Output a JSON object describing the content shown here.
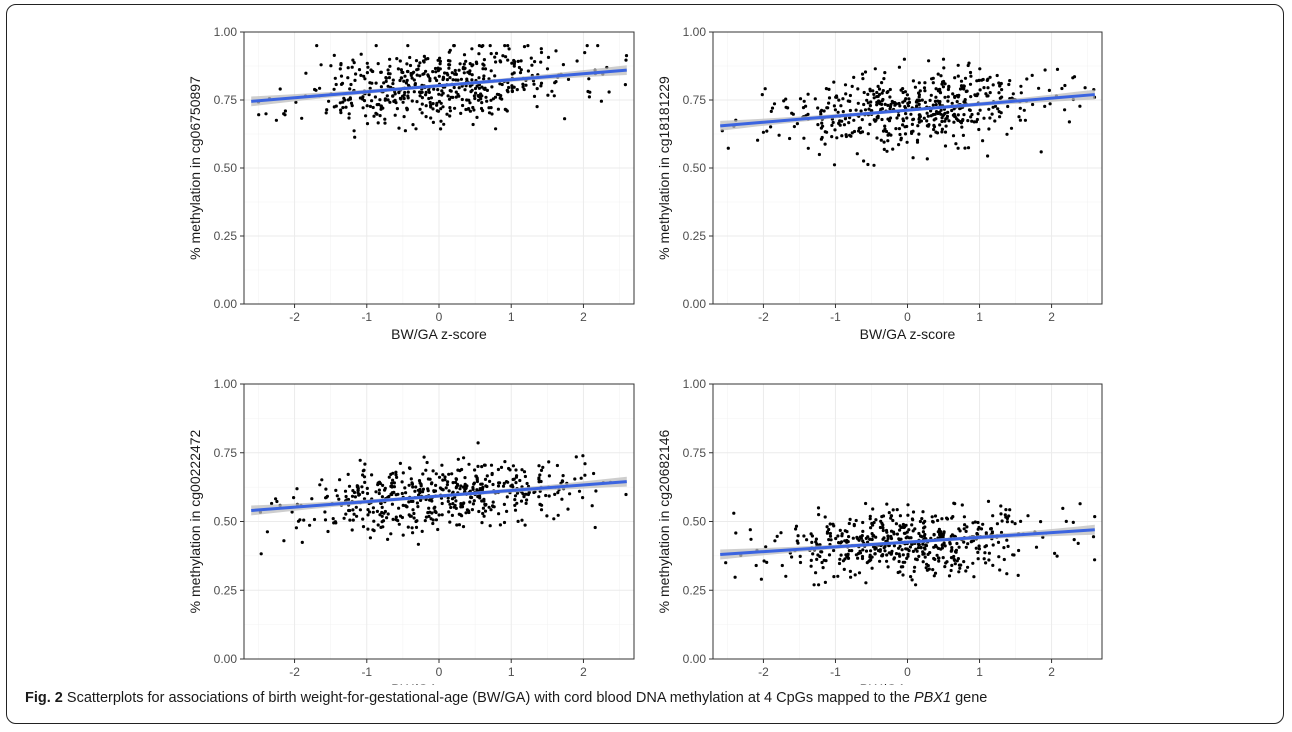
{
  "chart_data": [
    {
      "type": "scatter",
      "xlabel": "BW/GA z-score",
      "ylabel": "% methylation in cg06750897",
      "xlim": [
        -2.7,
        2.7
      ],
      "ylim": [
        0,
        1
      ],
      "x_ticks": [
        "-2",
        "-1",
        "0",
        "1",
        "2"
      ],
      "y_ticks": [
        "0.00",
        "0.25",
        "0.50",
        "0.75",
        "1.00"
      ],
      "grid": true,
      "trend_line": {
        "x": [
          -2.6,
          2.6
        ],
        "y": [
          0.745,
          0.86
        ]
      },
      "point_cloud": {
        "count": 540,
        "center": 0.815,
        "spread": 0.07,
        "min": 0.59,
        "max": 0.95,
        "seed": 11
      }
    },
    {
      "type": "scatter",
      "xlabel": "BW/GA z-score",
      "ylabel": "% methylation in cg18181229",
      "xlim": [
        -2.7,
        2.7
      ],
      "ylim": [
        0,
        1
      ],
      "x_ticks": [
        "-2",
        "-1",
        "0",
        "1",
        "2"
      ],
      "y_ticks": [
        "0.00",
        "0.25",
        "0.50",
        "0.75",
        "1.00"
      ],
      "grid": true,
      "trend_line": {
        "x": [
          -2.6,
          2.6
        ],
        "y": [
          0.655,
          0.77
        ]
      },
      "point_cloud": {
        "count": 540,
        "center": 0.715,
        "spread": 0.07,
        "min": 0.51,
        "max": 0.9,
        "seed": 23
      }
    },
    {
      "type": "scatter",
      "xlabel": "BW/GA z-score",
      "ylabel": "% methylation in cg00222472",
      "xlim": [
        -2.7,
        2.7
      ],
      "ylim": [
        0,
        1
      ],
      "x_ticks": [
        "-2",
        "-1",
        "0",
        "1",
        "2"
      ],
      "y_ticks": [
        "0.00",
        "0.25",
        "0.50",
        "0.75",
        "1.00"
      ],
      "grid": true,
      "trend_line": {
        "x": [
          -2.6,
          2.6
        ],
        "y": [
          0.54,
          0.645
        ]
      },
      "point_cloud": {
        "count": 540,
        "center": 0.6,
        "spread": 0.06,
        "min": 0.32,
        "max": 0.82,
        "seed": 37
      }
    },
    {
      "type": "scatter",
      "xlabel": "BW/GA z-score",
      "ylabel": "% methylation in cg20682146",
      "xlim": [
        -2.7,
        2.7
      ],
      "ylim": [
        0,
        1
      ],
      "x_ticks": [
        "-2",
        "-1",
        "0",
        "1",
        "2"
      ],
      "y_ticks": [
        "0.00",
        "0.25",
        "0.50",
        "0.75",
        "1.00"
      ],
      "grid": true,
      "trend_line": {
        "x": [
          -2.6,
          2.6
        ],
        "y": [
          0.38,
          0.47
        ]
      },
      "point_cloud": {
        "count": 540,
        "center": 0.425,
        "spread": 0.06,
        "min": 0.27,
        "max": 0.63,
        "seed": 53
      }
    }
  ],
  "caption": {
    "label": "Fig. 2",
    "text_before": " Scatterplots for associations of birth weight-for-gestational-age (BW/GA) with cord blood DNA methylation at 4 CpGs mapped to the ",
    "gene": "PBX1",
    "text_after": " gene"
  },
  "colors": {
    "trend_line": "#3b64e0",
    "confidence_band": "#bdbdbd",
    "points": "#000000",
    "grid": "#ebebeb",
    "panel_border": "#333333"
  }
}
